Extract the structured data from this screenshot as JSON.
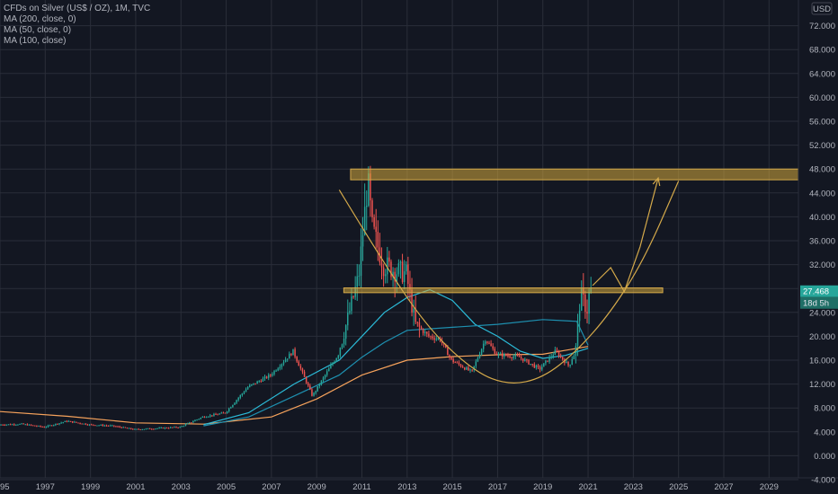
{
  "header": {
    "symbol_line": "CFDs on Silver (US$ / OZ), 1M, TVC",
    "indicators": [
      "MA (200, close, 0)",
      "MA (50, close, 0)",
      "MA (100, close)"
    ],
    "currency": "USD"
  },
  "price_labels": {
    "last_price": "27.468",
    "countdown": "18d 5h"
  },
  "colors": {
    "background": "#131722",
    "grid": "#2a2e39",
    "up": "#26a69a",
    "down": "#ef5350",
    "ma200": "#f7a35c",
    "ma50": "#2bbbd8",
    "ma100": "#1e90b0",
    "annotation": "#d4a94a",
    "zone_fill": "rgba(214,170,60,0.55)"
  },
  "chart_data": {
    "type": "candlestick",
    "ylim": [
      -4,
      76
    ],
    "y_ticks": [
      "-4.000",
      "0.000",
      "4.000",
      "8.000",
      "12.000",
      "16.000",
      "20.000",
      "24.000",
      "28.000",
      "32.000",
      "36.000",
      "40.000",
      "44.000",
      "48.000",
      "52.000",
      "56.000",
      "60.000",
      "64.000",
      "68.000",
      "72.000"
    ],
    "x_ticks": [
      "1995",
      "1997",
      "1999",
      "2001",
      "2003",
      "2005",
      "2007",
      "2009",
      "2011",
      "2013",
      "2015",
      "2017",
      "2019",
      "2021",
      "2023",
      "2025",
      "2027",
      "2029"
    ],
    "x_range": [
      1995.0,
      2030.3
    ],
    "price_path": [
      [
        1995.0,
        5.2
      ],
      [
        1996.0,
        5.3
      ],
      [
        1997.0,
        4.8
      ],
      [
        1998.0,
        5.8
      ],
      [
        1999.0,
        5.2
      ],
      [
        2000.0,
        5.0
      ],
      [
        2001.0,
        4.4
      ],
      [
        2002.0,
        4.6
      ],
      [
        2003.0,
        4.8
      ],
      [
        2004.0,
        6.5
      ],
      [
        2005.0,
        7.2
      ],
      [
        2006.0,
        11.5
      ],
      [
        2007.0,
        13.5
      ],
      [
        2008.0,
        17.5
      ],
      [
        2008.85,
        10.0
      ],
      [
        2009.5,
        14.0
      ],
      [
        2010.0,
        17.0
      ],
      [
        2010.9,
        30.0
      ],
      [
        2011.3,
        46.0
      ],
      [
        2011.5,
        38.0
      ],
      [
        2012.0,
        32.0
      ],
      [
        2012.5,
        31.0
      ],
      [
        2013.0,
        30.5
      ],
      [
        2013.4,
        22.0
      ],
      [
        2014.0,
        20.0
      ],
      [
        2014.5,
        19.5
      ],
      [
        2015.0,
        16.0
      ],
      [
        2015.9,
        14.0
      ],
      [
        2016.5,
        19.5
      ],
      [
        2017.0,
        17.0
      ],
      [
        2018.0,
        16.5
      ],
      [
        2018.9,
        14.5
      ],
      [
        2019.6,
        17.5
      ],
      [
        2020.2,
        15.0
      ],
      [
        2020.5,
        18.0
      ],
      [
        2020.7,
        27.0
      ],
      [
        2021.0,
        24.5
      ],
      [
        2021.1,
        27.468
      ]
    ],
    "series": [
      {
        "name": "MA (200, close, 0)",
        "points": [
          [
            1995,
            7.4
          ],
          [
            1998,
            6.6
          ],
          [
            2001,
            5.5
          ],
          [
            2004,
            5.3
          ],
          [
            2007,
            6.5
          ],
          [
            2009,
            9.5
          ],
          [
            2011,
            13.5
          ],
          [
            2013,
            16.0
          ],
          [
            2015,
            16.6
          ],
          [
            2017,
            16.9
          ],
          [
            2019,
            17.0
          ],
          [
            2021,
            18.3
          ]
        ]
      },
      {
        "name": "MA (50, close, 0)",
        "points": [
          [
            2004,
            5.2
          ],
          [
            2006,
            7.2
          ],
          [
            2008,
            12.0
          ],
          [
            2010,
            16.0
          ],
          [
            2011,
            20.0
          ],
          [
            2012,
            24.0
          ],
          [
            2013,
            26.5
          ],
          [
            2014,
            27.8
          ],
          [
            2015,
            26.0
          ],
          [
            2016,
            22.0
          ],
          [
            2017,
            20.0
          ],
          [
            2018,
            17.5
          ],
          [
            2019,
            16.3
          ],
          [
            2020,
            16.8
          ],
          [
            2021,
            18.0
          ]
        ]
      },
      {
        "name": "MA (100, close)",
        "points": [
          [
            2004,
            5.0
          ],
          [
            2006,
            6.5
          ],
          [
            2008,
            10.0
          ],
          [
            2010,
            13.5
          ],
          [
            2011,
            16.5
          ],
          [
            2012,
            19.0
          ],
          [
            2013,
            21.0
          ],
          [
            2015,
            21.5
          ],
          [
            2017,
            22.0
          ],
          [
            2019,
            22.8
          ],
          [
            2020.5,
            22.5
          ],
          [
            2021,
            18.5
          ]
        ]
      }
    ],
    "annotations": {
      "resistance_zone": {
        "x0": 2010.5,
        "x1": 2030.3,
        "y0": 46.2,
        "y1": 48.0
      },
      "support_zone": {
        "x0": 2010.2,
        "x1": 2024.3,
        "y0": 27.3,
        "y1": 28.1
      },
      "bowl_curve": [
        [
          2010.0,
          44.5
        ],
        [
          2012.0,
          32.0
        ],
        [
          2014.0,
          21.0
        ],
        [
          2016.0,
          14.0
        ],
        [
          2017.5,
          11.8
        ],
        [
          2019.0,
          13.0
        ],
        [
          2020.5,
          17.5
        ],
        [
          2022.0,
          24.0
        ],
        [
          2023.5,
          33.0
        ],
        [
          2025.0,
          46.0
        ]
      ],
      "projection_path": [
        [
          2021.2,
          28.5
        ],
        [
          2022.0,
          31.5
        ],
        [
          2022.6,
          27.5
        ],
        [
          2023.3,
          35.0
        ],
        [
          2024.1,
          46.5
        ]
      ]
    },
    "legend_placement": "top-left"
  }
}
